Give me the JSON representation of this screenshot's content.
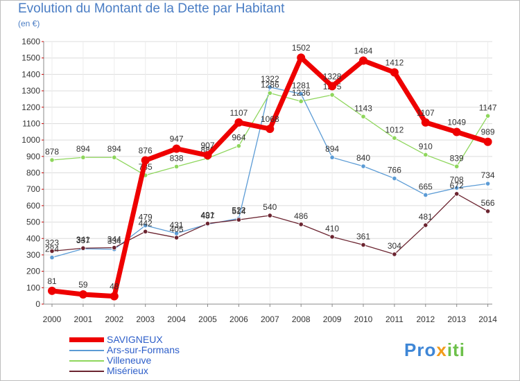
{
  "title": "Evolution du Montant de la Dette par Habitant",
  "subtitle": "(en €)",
  "logo": "Proxiti",
  "chart_data": {
    "type": "line",
    "title": "Evolution du Montant de la Dette par Habitant",
    "subtitle": "(en €)",
    "x": [
      2000,
      2001,
      2002,
      2003,
      2004,
      2005,
      2006,
      2007,
      2008,
      2009,
      2010,
      2011,
      2012,
      2013,
      2014
    ],
    "ylim": [
      0,
      1600
    ],
    "yticks": [
      0,
      100,
      200,
      300,
      400,
      500,
      600,
      700,
      800,
      900,
      1000,
      1100,
      1200,
      1300,
      1400,
      1500,
      1600
    ],
    "grid": true,
    "legend": "bottom-left",
    "series": [
      {
        "name": "SAVIGNEUX",
        "color": "#ee0000",
        "values": [
          81,
          59,
          48,
          876,
          947,
          907,
          1107,
          1068,
          1502,
          1328,
          1484,
          1412,
          1107,
          1049,
          989
        ]
      },
      {
        "name": "Ars-sur-Formans",
        "color": "#5b9bd5",
        "values": [
          284,
          337,
          334,
          479,
          431,
          487,
          522,
          1322,
          1281,
          894,
          840,
          766,
          665,
          708,
          734
        ]
      },
      {
        "name": "Villeneuve",
        "color": "#8ed65c",
        "values": [
          878,
          894,
          894,
          785,
          838,
          889,
          964,
          1286,
          1236,
          1275,
          1143,
          1012,
          910,
          839,
          1147
        ]
      },
      {
        "name": "Misérieux",
        "color": "#6b2430",
        "values": [
          323,
          341,
          344,
          442,
          405,
          491,
          514,
          540,
          486,
          410,
          361,
          304,
          481,
          672,
          566
        ]
      }
    ]
  }
}
